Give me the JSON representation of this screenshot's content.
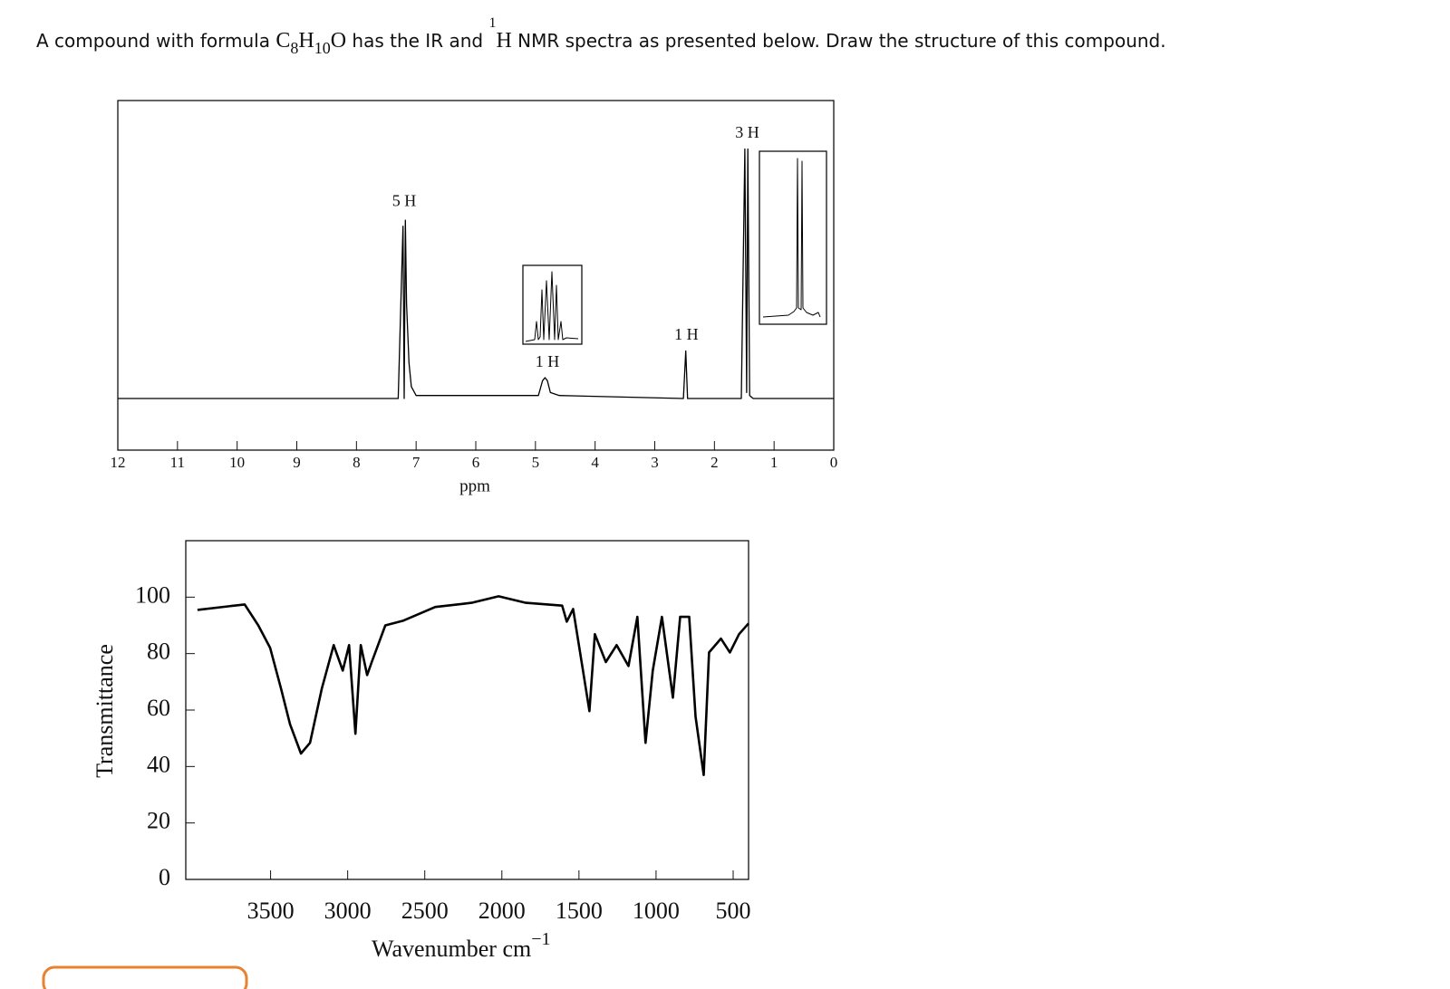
{
  "question": [
    "A compound with formula ",
    "C",
    "8",
    "H",
    "10",
    "O",
    " has the IR and ",
    "1",
    "H",
    " NMR spectra as presented below. Draw the structure of this compound."
  ],
  "chart_data": [
    {
      "type": "line",
      "x_label": "ppm",
      "xlim": [
        12,
        0
      ],
      "xticks": [
        12,
        11,
        10,
        9,
        8,
        7,
        6,
        5,
        4,
        3,
        2,
        1,
        0
      ],
      "ylim": [
        0,
        100
      ],
      "x": [
        12,
        7.3,
        7.22,
        7.2,
        7.18,
        7.16,
        7.12,
        7.08,
        7.0,
        4.95,
        4.88,
        4.84,
        4.8,
        4.75,
        4.6,
        2.52,
        2.48,
        2.45,
        2.4,
        1.55,
        1.49,
        1.46,
        1.44,
        1.41,
        1.35,
        0
      ],
      "values": [
        0,
        0,
        58,
        0,
        60,
        32,
        12,
        4,
        1,
        1,
        6,
        7,
        6,
        2,
        1,
        0,
        16,
        0,
        0,
        0,
        84,
        2,
        84,
        1,
        0,
        0
      ],
      "annotations": [
        {
          "text": "5 H",
          "x": 7.2,
          "y": 66
        },
        {
          "text": "1 H",
          "x": 4.8,
          "y": 12
        },
        {
          "text": "1 H",
          "x": 2.47,
          "y": 21
        },
        {
          "text": "3 H",
          "x": 1.45,
          "y": 89
        }
      ]
    },
    {
      "type": "line",
      "x_label": "Wavenumber cm",
      "x_label_sup": "−1",
      "y_label": "Transmittance",
      "xlim": [
        4050,
        400
      ],
      "xticks": [
        3500,
        3000,
        2500,
        2000,
        1500,
        1000,
        500
      ],
      "ylim": [
        0,
        120
      ],
      "yticks": [
        0,
        20,
        40,
        60,
        80,
        100
      ],
      "x": [
        3974,
        3668,
        3580,
        3503,
        3432,
        3374,
        3303,
        3244,
        3168,
        3091,
        3032,
        2991,
        2950,
        2915,
        2874,
        2844,
        2756,
        2638,
        2432,
        2197,
        2021,
        1844,
        1609,
        1579,
        1538,
        1474,
        1432,
        1397,
        1326,
        1256,
        1179,
        1121,
        1068,
        1021,
        962,
        891,
        844,
        785,
        744,
        691,
        656,
        579,
        521,
        462,
        400
      ],
      "values": [
        95.5,
        97.4,
        90,
        82,
        67.6,
        55,
        44.6,
        48.4,
        67.6,
        83,
        74,
        83,
        51.6,
        83,
        72.4,
        77,
        90,
        91.7,
        96.5,
        98,
        100.3,
        98,
        97,
        91.3,
        95.8,
        74,
        59.6,
        86.9,
        77,
        83,
        75.6,
        93,
        48.4,
        74,
        93,
        64.4,
        93,
        93,
        57.7,
        37,
        80.4,
        85.3,
        80.4,
        86.9,
        90.7
      ]
    }
  ]
}
